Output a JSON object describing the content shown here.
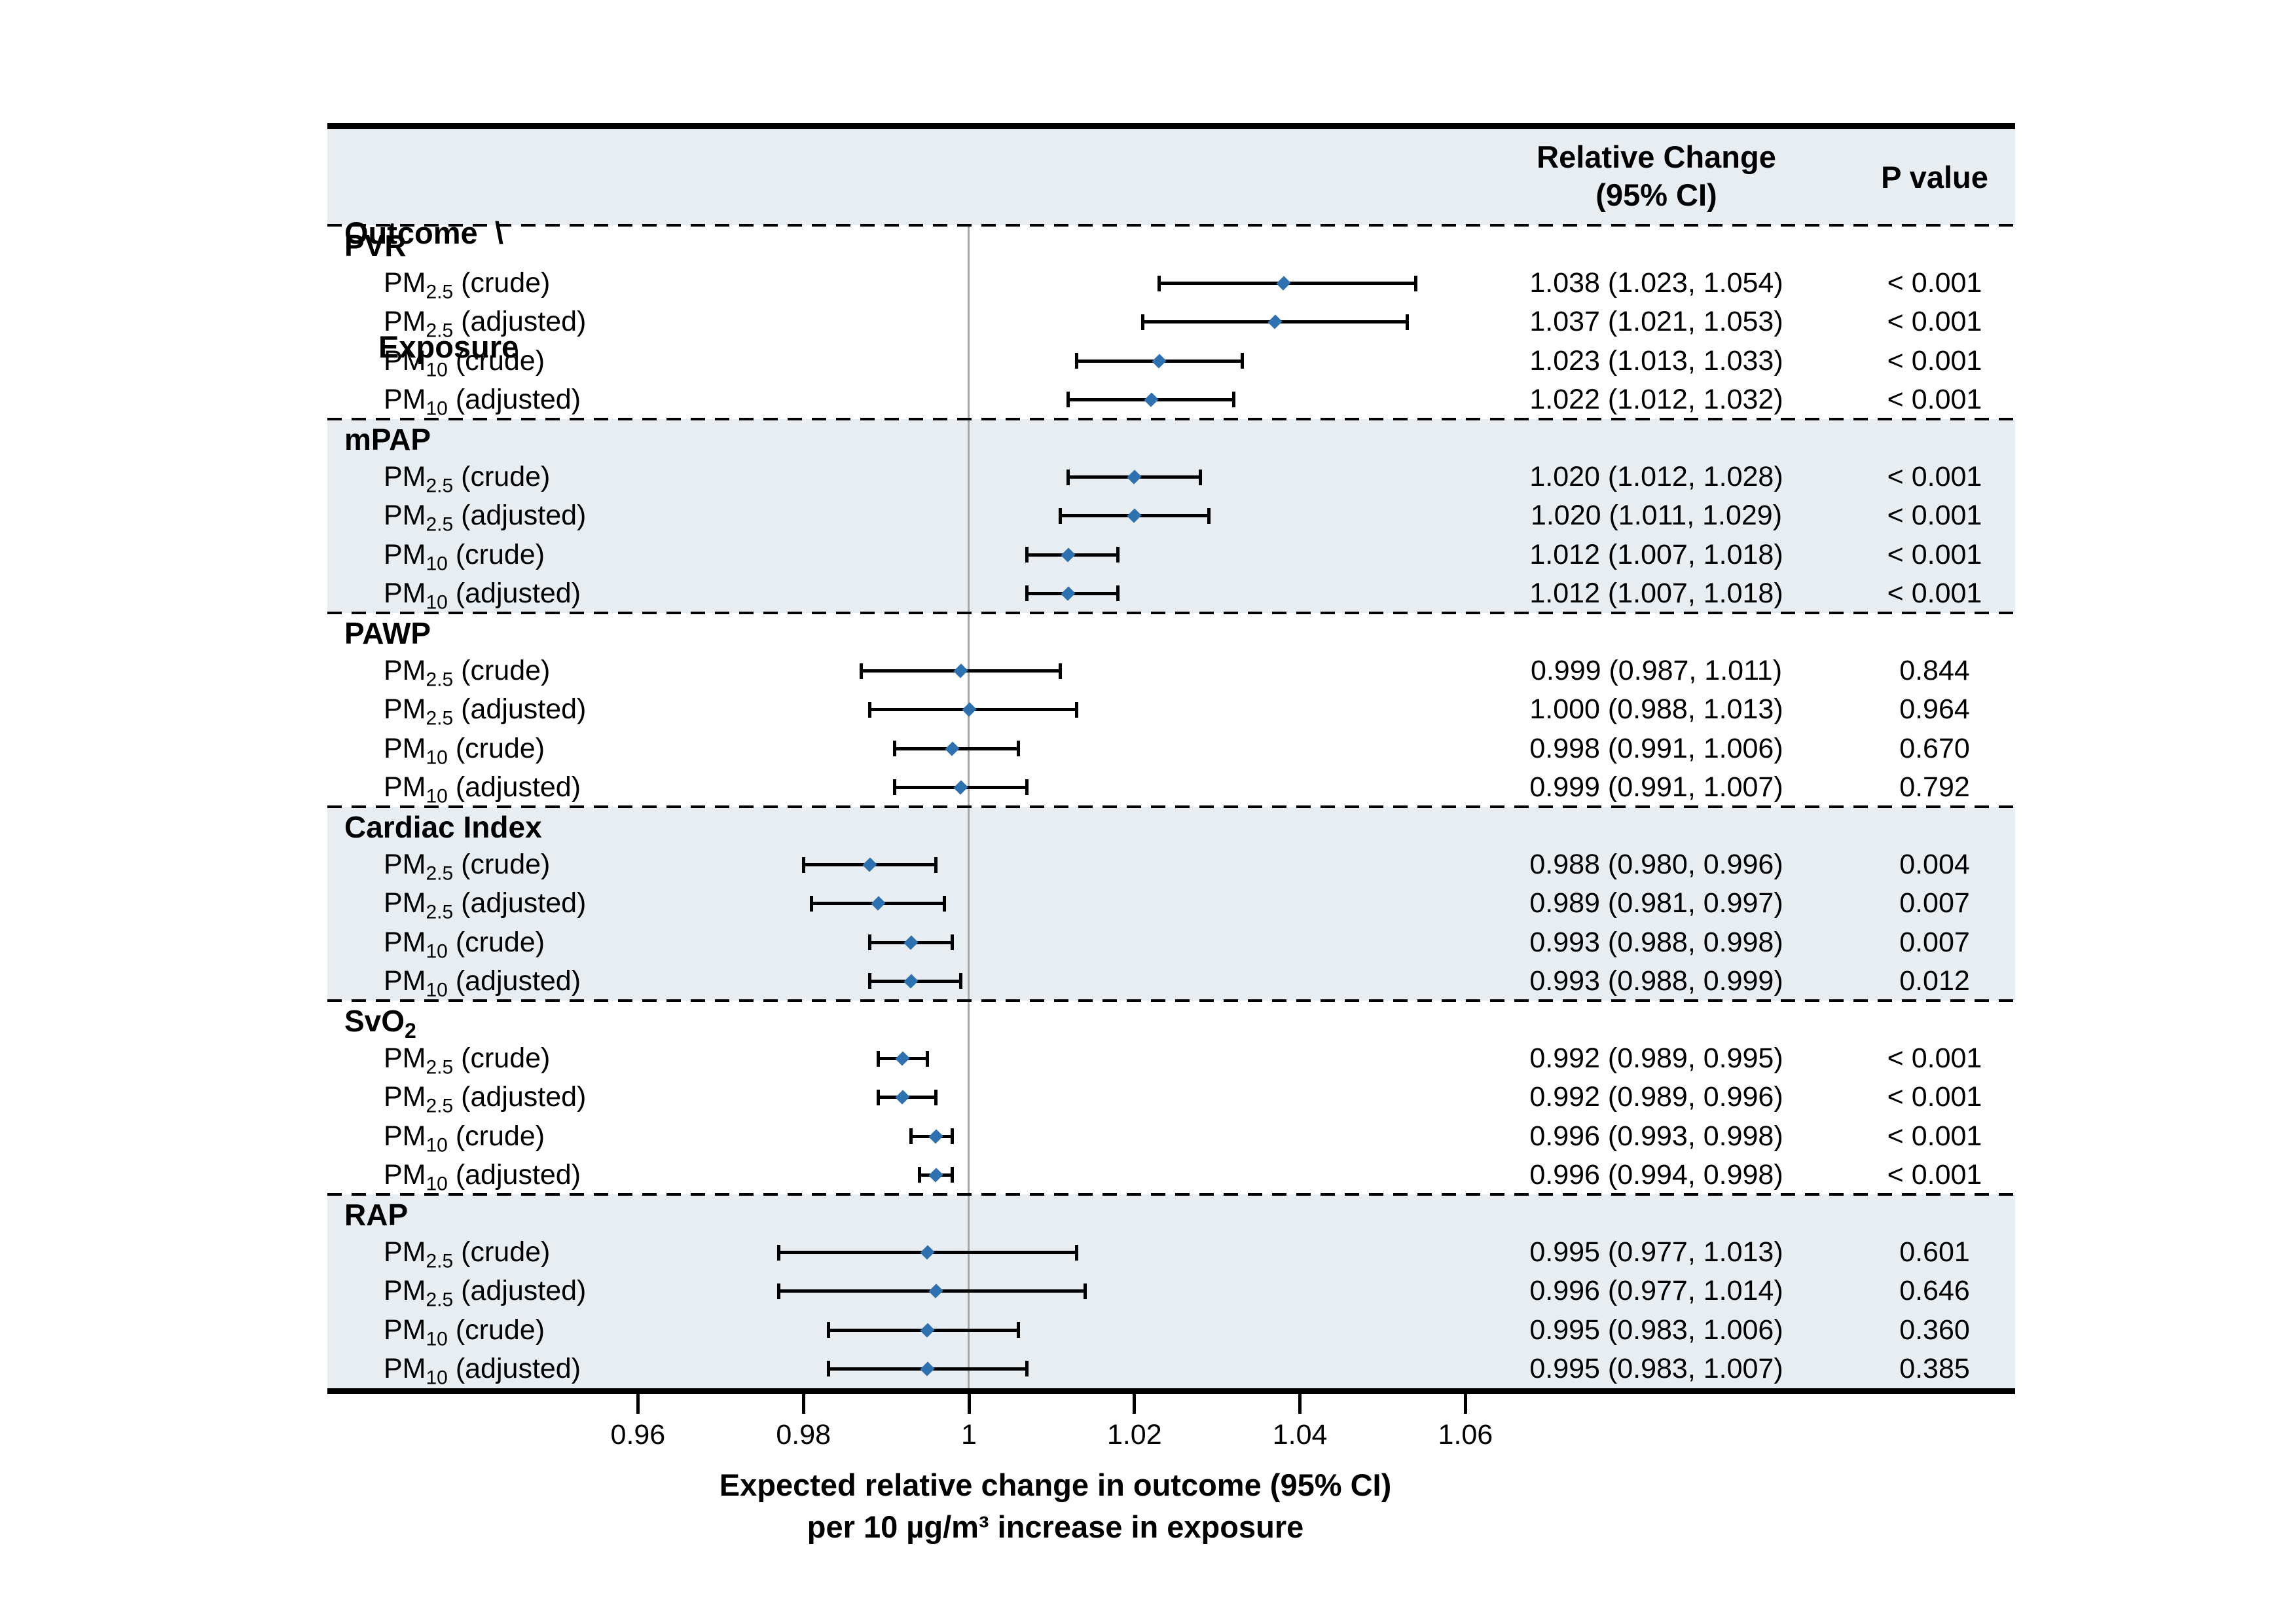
{
  "header": {
    "outcome_line1": "Outcome  \\",
    "outcome_line2": "Exposure",
    "estimate_line1": "Relative Change",
    "estimate_line2": "(95% CI)",
    "p_label": "P value"
  },
  "axis": {
    "ticks": [
      {
        "value": 0.96,
        "label": "0.96"
      },
      {
        "value": 0.98,
        "label": "0.98"
      },
      {
        "value": 1.0,
        "label": "1"
      },
      {
        "value": 1.02,
        "label": "1.02"
      },
      {
        "value": 1.04,
        "label": "1.04"
      },
      {
        "value": 1.06,
        "label": "1.06"
      }
    ],
    "title_line1": "Expected relative change in outcome (95% CI)",
    "title_line2": "per 10 µg/m³ increase in exposure",
    "reference_value": 1
  },
  "colors": {
    "band": "#e7edf1",
    "diamond": "#2e71b0",
    "reference_line": "#a6a6a6",
    "text": "#000000"
  },
  "chart_data": {
    "type": "forest",
    "title": "",
    "xlabel": "Expected relative change in outcome (95% CI) per 10 µg/m³ increase in exposure",
    "xlim": [
      0.948,
      1.07
    ],
    "reference_line": 1.0,
    "grid": false,
    "legend": null,
    "columns": [
      "Outcome \\ Exposure",
      "Relative Change (95% CI)",
      "P value"
    ],
    "groups": [
      {
        "outcome": "PVR",
        "outcome_sub": "",
        "rows": [
          {
            "label_pre": "PM",
            "label_sub": "2.5",
            "label_post": " (crude)",
            "label_text": "PM2.5 (crude)",
            "estimate": 1.038,
            "ci_low": 1.023,
            "ci_high": 1.054,
            "estimate_text": "1.038 (1.023, 1.054)",
            "p_text": "< 0.001"
          },
          {
            "label_pre": "PM",
            "label_sub": "2.5",
            "label_post": " (adjusted)",
            "label_text": "PM2.5 (adjusted)",
            "estimate": 1.037,
            "ci_low": 1.021,
            "ci_high": 1.053,
            "estimate_text": "1.037 (1.021, 1.053)",
            "p_text": "< 0.001"
          },
          {
            "label_pre": "PM",
            "label_sub": "10",
            "label_post": " (crude)",
            "label_text": "PM10 (crude)",
            "estimate": 1.023,
            "ci_low": 1.013,
            "ci_high": 1.033,
            "estimate_text": "1.023 (1.013, 1.033)",
            "p_text": "< 0.001"
          },
          {
            "label_pre": "PM",
            "label_sub": "10",
            "label_post": " (adjusted)",
            "label_text": "PM10 (adjusted)",
            "estimate": 1.022,
            "ci_low": 1.012,
            "ci_high": 1.032,
            "estimate_text": "1.022 (1.012, 1.032)",
            "p_text": "< 0.001"
          }
        ]
      },
      {
        "outcome": "mPAP",
        "outcome_sub": "",
        "rows": [
          {
            "label_pre": "PM",
            "label_sub": "2.5",
            "label_post": " (crude)",
            "label_text": "PM2.5 (crude)",
            "estimate": 1.02,
            "ci_low": 1.012,
            "ci_high": 1.028,
            "estimate_text": "1.020 (1.012, 1.028)",
            "p_text": "< 0.001"
          },
          {
            "label_pre": "PM",
            "label_sub": "2.5",
            "label_post": " (adjusted)",
            "label_text": "PM2.5 (adjusted)",
            "estimate": 1.02,
            "ci_low": 1.011,
            "ci_high": 1.029,
            "estimate_text": "1.020 (1.011, 1.029)",
            "p_text": "< 0.001"
          },
          {
            "label_pre": "PM",
            "label_sub": "10",
            "label_post": " (crude)",
            "label_text": "PM10 (crude)",
            "estimate": 1.012,
            "ci_low": 1.007,
            "ci_high": 1.018,
            "estimate_text": "1.012 (1.007, 1.018)",
            "p_text": "< 0.001"
          },
          {
            "label_pre": "PM",
            "label_sub": "10",
            "label_post": " (adjusted)",
            "label_text": "PM10 (adjusted)",
            "estimate": 1.012,
            "ci_low": 1.007,
            "ci_high": 1.018,
            "estimate_text": "1.012 (1.007, 1.018)",
            "p_text": "< 0.001"
          }
        ]
      },
      {
        "outcome": "PAWP",
        "outcome_sub": "",
        "rows": [
          {
            "label_pre": "PM",
            "label_sub": "2.5",
            "label_post": " (crude)",
            "label_text": "PM2.5 (crude)",
            "estimate": 0.999,
            "ci_low": 0.987,
            "ci_high": 1.011,
            "estimate_text": "0.999 (0.987, 1.011)",
            "p_text": "0.844"
          },
          {
            "label_pre": "PM",
            "label_sub": "2.5",
            "label_post": " (adjusted)",
            "label_text": "PM2.5 (adjusted)",
            "estimate": 1.0,
            "ci_low": 0.988,
            "ci_high": 1.013,
            "estimate_text": "1.000 (0.988, 1.013)",
            "p_text": "0.964"
          },
          {
            "label_pre": "PM",
            "label_sub": "10",
            "label_post": " (crude)",
            "label_text": "PM10 (crude)",
            "estimate": 0.998,
            "ci_low": 0.991,
            "ci_high": 1.006,
            "estimate_text": "0.998 (0.991, 1.006)",
            "p_text": "0.670"
          },
          {
            "label_pre": "PM",
            "label_sub": "10",
            "label_post": " (adjusted)",
            "label_text": "PM10 (adjusted)",
            "estimate": 0.999,
            "ci_low": 0.991,
            "ci_high": 1.007,
            "estimate_text": "0.999 (0.991, 1.007)",
            "p_text": "0.792"
          }
        ]
      },
      {
        "outcome": "Cardiac Index",
        "outcome_sub": "",
        "rows": [
          {
            "label_pre": "PM",
            "label_sub": "2.5",
            "label_post": " (crude)",
            "label_text": "PM2.5 (crude)",
            "estimate": 0.988,
            "ci_low": 0.98,
            "ci_high": 0.996,
            "estimate_text": "0.988 (0.980, 0.996)",
            "p_text": "0.004"
          },
          {
            "label_pre": "PM",
            "label_sub": "2.5",
            "label_post": " (adjusted)",
            "label_text": "PM2.5 (adjusted)",
            "estimate": 0.989,
            "ci_low": 0.981,
            "ci_high": 0.997,
            "estimate_text": "0.989 (0.981, 0.997)",
            "p_text": "0.007"
          },
          {
            "label_pre": "PM",
            "label_sub": "10",
            "label_post": " (crude)",
            "label_text": "PM10 (crude)",
            "estimate": 0.993,
            "ci_low": 0.988,
            "ci_high": 0.998,
            "estimate_text": "0.993 (0.988, 0.998)",
            "p_text": "0.007"
          },
          {
            "label_pre": "PM",
            "label_sub": "10",
            "label_post": " (adjusted)",
            "label_text": "PM10 (adjusted)",
            "estimate": 0.993,
            "ci_low": 0.988,
            "ci_high": 0.999,
            "estimate_text": "0.993 (0.988, 0.999)",
            "p_text": "0.012"
          }
        ]
      },
      {
        "outcome": "SvO",
        "outcome_sub": "2",
        "rows": [
          {
            "label_pre": "PM",
            "label_sub": "2.5",
            "label_post": " (crude)",
            "label_text": "PM2.5 (crude)",
            "estimate": 0.992,
            "ci_low": 0.989,
            "ci_high": 0.995,
            "estimate_text": "0.992 (0.989, 0.995)",
            "p_text": "< 0.001"
          },
          {
            "label_pre": "PM",
            "label_sub": "2.5",
            "label_post": " (adjusted)",
            "label_text": "PM2.5 (adjusted)",
            "estimate": 0.992,
            "ci_low": 0.989,
            "ci_high": 0.996,
            "estimate_text": "0.992 (0.989, 0.996)",
            "p_text": "< 0.001"
          },
          {
            "label_pre": "PM",
            "label_sub": "10",
            "label_post": " (crude)",
            "label_text": "PM10 (crude)",
            "estimate": 0.996,
            "ci_low": 0.993,
            "ci_high": 0.998,
            "estimate_text": "0.996 (0.993, 0.998)",
            "p_text": "< 0.001"
          },
          {
            "label_pre": "PM",
            "label_sub": "10",
            "label_post": " (adjusted)",
            "label_text": "PM10 (adjusted)",
            "estimate": 0.996,
            "ci_low": 0.994,
            "ci_high": 0.998,
            "estimate_text": "0.996 (0.994, 0.998)",
            "p_text": "< 0.001"
          }
        ]
      },
      {
        "outcome": "RAP",
        "outcome_sub": "",
        "rows": [
          {
            "label_pre": "PM",
            "label_sub": "2.5",
            "label_post": " (crude)",
            "label_text": "PM2.5 (crude)",
            "estimate": 0.995,
            "ci_low": 0.977,
            "ci_high": 1.013,
            "estimate_text": "0.995 (0.977, 1.013)",
            "p_text": "0.601"
          },
          {
            "label_pre": "PM",
            "label_sub": "2.5",
            "label_post": " (adjusted)",
            "label_text": "PM2.5 (adjusted)",
            "estimate": 0.996,
            "ci_low": 0.977,
            "ci_high": 1.014,
            "estimate_text": "0.996 (0.977, 1.014)",
            "p_text": "0.646"
          },
          {
            "label_pre": "PM",
            "label_sub": "10",
            "label_post": " (crude)",
            "label_text": "PM10 (crude)",
            "estimate": 0.995,
            "ci_low": 0.983,
            "ci_high": 1.006,
            "estimate_text": "0.995 (0.983, 1.006)",
            "p_text": "0.360"
          },
          {
            "label_pre": "PM",
            "label_sub": "10",
            "label_post": " (adjusted)",
            "label_text": "PM10 (adjusted)",
            "estimate": 0.995,
            "ci_low": 0.983,
            "ci_high": 1.007,
            "estimate_text": "0.995 (0.983, 1.007)",
            "p_text": "0.385"
          }
        ]
      }
    ]
  }
}
